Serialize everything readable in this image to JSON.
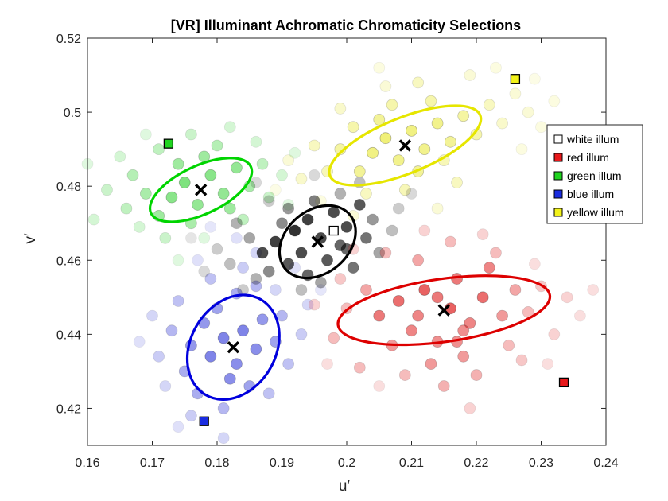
{
  "chart_data": {
    "type": "scatter",
    "title": "[VR] Illuminant Achromatic Chromaticity Selections",
    "xlabel": "u′",
    "ylabel": "v′",
    "xlim": [
      0.16,
      0.24
    ],
    "ylim": [
      0.41,
      0.52
    ],
    "xticks": [
      0.16,
      0.17,
      0.18,
      0.19,
      0.2,
      0.21,
      0.22,
      0.23,
      0.24
    ],
    "yticks": [
      0.42,
      0.44,
      0.46,
      0.48,
      0.5,
      0.52
    ],
    "xtick_labels": [
      "0.16",
      "0.17",
      "0.18",
      "0.19",
      "0.2",
      "0.21",
      "0.22",
      "0.23",
      "0.24"
    ],
    "ytick_labels": [
      "0.42",
      "0.44",
      "0.46",
      "0.48",
      "0.5",
      "0.52"
    ],
    "legend_position": "top-right",
    "series": [
      {
        "name": "white illum",
        "color": "#ffffff",
        "point_color": "#000000",
        "ellipse_color": "#000000",
        "illuminant": [
          0.198,
          0.468
        ],
        "mean": [
          0.1955,
          0.465
        ],
        "ellipse": {
          "rx": 0.0065,
          "ry": 0.0085,
          "angle_deg": 40
        },
        "points": [
          [
            0.187,
            0.462
          ],
          [
            0.189,
            0.465
          ],
          [
            0.191,
            0.459
          ],
          [
            0.192,
            0.468
          ],
          [
            0.193,
            0.462
          ],
          [
            0.194,
            0.456
          ],
          [
            0.194,
            0.471
          ],
          [
            0.196,
            0.466
          ],
          [
            0.197,
            0.46
          ],
          [
            0.198,
            0.473
          ],
          [
            0.199,
            0.464
          ],
          [
            0.2,
            0.469
          ],
          [
            0.201,
            0.458
          ],
          [
            0.202,
            0.475
          ],
          [
            0.19,
            0.47
          ],
          [
            0.188,
            0.457
          ],
          [
            0.195,
            0.476
          ],
          [
            0.2,
            0.463
          ],
          [
            0.203,
            0.466
          ],
          [
            0.185,
            0.466
          ],
          [
            0.183,
            0.47
          ],
          [
            0.191,
            0.474
          ],
          [
            0.196,
            0.454
          ],
          [
            0.204,
            0.471
          ],
          [
            0.186,
            0.455
          ],
          [
            0.182,
            0.459
          ],
          [
            0.205,
            0.462
          ],
          [
            0.199,
            0.478
          ],
          [
            0.193,
            0.452
          ],
          [
            0.207,
            0.468
          ],
          [
            0.18,
            0.463
          ],
          [
            0.184,
            0.452
          ],
          [
            0.188,
            0.476
          ],
          [
            0.202,
            0.481
          ],
          [
            0.178,
            0.457
          ],
          [
            0.208,
            0.474
          ],
          [
            0.195,
            0.483
          ],
          [
            0.186,
            0.481
          ],
          [
            0.176,
            0.466
          ],
          [
            0.21,
            0.478
          ]
        ],
        "alphas": [
          0.7,
          0.75,
          0.65,
          0.8,
          0.7,
          0.6,
          0.75,
          0.7,
          0.65,
          0.7,
          0.6,
          0.7,
          0.55,
          0.65,
          0.45,
          0.45,
          0.5,
          0.6,
          0.55,
          0.35,
          0.3,
          0.4,
          0.35,
          0.4,
          0.3,
          0.25,
          0.35,
          0.3,
          0.25,
          0.25,
          0.2,
          0.2,
          0.2,
          0.25,
          0.15,
          0.2,
          0.15,
          0.15,
          0.1,
          0.15
        ]
      },
      {
        "name": "red illum",
        "color": "#e8191b",
        "point_color": "#e02020",
        "ellipse_color": "#dd0000",
        "illuminant": [
          0.2335,
          0.427
        ],
        "mean": [
          0.215,
          0.4465
        ],
        "ellipse": {
          "rx": 0.0165,
          "ry": 0.0085,
          "angle_deg": 8
        },
        "points": [
          [
            0.205,
            0.445
          ],
          [
            0.208,
            0.449
          ],
          [
            0.21,
            0.441
          ],
          [
            0.212,
            0.452
          ],
          [
            0.214,
            0.438
          ],
          [
            0.216,
            0.447
          ],
          [
            0.217,
            0.455
          ],
          [
            0.219,
            0.443
          ],
          [
            0.221,
            0.45
          ],
          [
            0.222,
            0.458
          ],
          [
            0.207,
            0.437
          ],
          [
            0.203,
            0.452
          ],
          [
            0.213,
            0.432
          ],
          [
            0.218,
            0.434
          ],
          [
            0.224,
            0.445
          ],
          [
            0.226,
            0.452
          ],
          [
            0.211,
            0.46
          ],
          [
            0.2,
            0.447
          ],
          [
            0.198,
            0.439
          ],
          [
            0.202,
            0.431
          ],
          [
            0.209,
            0.429
          ],
          [
            0.215,
            0.426
          ],
          [
            0.22,
            0.429
          ],
          [
            0.225,
            0.437
          ],
          [
            0.228,
            0.446
          ],
          [
            0.23,
            0.453
          ],
          [
            0.223,
            0.462
          ],
          [
            0.216,
            0.465
          ],
          [
            0.206,
            0.462
          ],
          [
            0.199,
            0.455
          ],
          [
            0.195,
            0.448
          ],
          [
            0.232,
            0.44
          ],
          [
            0.234,
            0.45
          ],
          [
            0.227,
            0.433
          ],
          [
            0.212,
            0.468
          ],
          [
            0.221,
            0.467
          ],
          [
            0.236,
            0.445
          ],
          [
            0.219,
            0.42
          ],
          [
            0.197,
            0.432
          ],
          [
            0.205,
            0.426
          ],
          [
            0.238,
            0.452
          ],
          [
            0.231,
            0.432
          ],
          [
            0.229,
            0.459
          ],
          [
            0.201,
            0.463
          ],
          [
            0.217,
            0.438
          ],
          [
            0.211,
            0.445
          ],
          [
            0.214,
            0.45
          ],
          [
            0.218,
            0.441
          ]
        ],
        "alphas": [
          0.6,
          0.65,
          0.55,
          0.7,
          0.5,
          0.7,
          0.6,
          0.55,
          0.65,
          0.55,
          0.45,
          0.4,
          0.45,
          0.45,
          0.45,
          0.4,
          0.4,
          0.3,
          0.3,
          0.3,
          0.3,
          0.35,
          0.35,
          0.3,
          0.3,
          0.25,
          0.3,
          0.3,
          0.3,
          0.25,
          0.2,
          0.2,
          0.2,
          0.25,
          0.2,
          0.2,
          0.15,
          0.2,
          0.15,
          0.15,
          0.15,
          0.15,
          0.15,
          0.2,
          0.5,
          0.55,
          0.6,
          0.5
        ]
      },
      {
        "name": "green illum",
        "color": "#1fd41f",
        "point_color": "#2ad02a",
        "ellipse_color": "#00d400",
        "illuminant": [
          0.1725,
          0.4915
        ],
        "mean": [
          0.1775,
          0.479
        ],
        "ellipse": {
          "rx": 0.0085,
          "ry": 0.0065,
          "angle_deg": 25
        },
        "points": [
          [
            0.173,
            0.477
          ],
          [
            0.175,
            0.481
          ],
          [
            0.177,
            0.475
          ],
          [
            0.179,
            0.483
          ],
          [
            0.181,
            0.478
          ],
          [
            0.183,
            0.485
          ],
          [
            0.171,
            0.472
          ],
          [
            0.174,
            0.486
          ],
          [
            0.178,
            0.488
          ],
          [
            0.182,
            0.474
          ],
          [
            0.169,
            0.478
          ],
          [
            0.185,
            0.48
          ],
          [
            0.176,
            0.47
          ],
          [
            0.18,
            0.491
          ],
          [
            0.167,
            0.483
          ],
          [
            0.171,
            0.49
          ],
          [
            0.187,
            0.486
          ],
          [
            0.184,
            0.471
          ],
          [
            0.166,
            0.474
          ],
          [
            0.172,
            0.466
          ],
          [
            0.188,
            0.477
          ],
          [
            0.176,
            0.494
          ],
          [
            0.163,
            0.479
          ],
          [
            0.168,
            0.469
          ],
          [
            0.19,
            0.483
          ],
          [
            0.182,
            0.496
          ],
          [
            0.161,
            0.471
          ],
          [
            0.165,
            0.488
          ],
          [
            0.186,
            0.492
          ],
          [
            0.169,
            0.494
          ],
          [
            0.192,
            0.489
          ],
          [
            0.16,
            0.486
          ],
          [
            0.178,
            0.466
          ],
          [
            0.174,
            0.46
          ],
          [
            0.191,
            0.475
          ]
        ],
        "alphas": [
          0.55,
          0.6,
          0.5,
          0.55,
          0.5,
          0.5,
          0.45,
          0.45,
          0.45,
          0.45,
          0.4,
          0.4,
          0.4,
          0.35,
          0.35,
          0.3,
          0.3,
          0.3,
          0.3,
          0.25,
          0.25,
          0.25,
          0.25,
          0.2,
          0.2,
          0.2,
          0.2,
          0.2,
          0.2,
          0.15,
          0.15,
          0.15,
          0.15,
          0.15,
          0.15
        ]
      },
      {
        "name": "blue illum",
        "color": "#1a2ce0",
        "point_color": "#2a32d8",
        "ellipse_color": "#0000dd",
        "illuminant": [
          0.178,
          0.4165
        ],
        "mean": [
          0.1825,
          0.4365
        ],
        "ellipse": {
          "rx": 0.0085,
          "ry": 0.0115,
          "angle_deg": 60
        },
        "points": [
          [
            0.179,
            0.434
          ],
          [
            0.181,
            0.439
          ],
          [
            0.183,
            0.432
          ],
          [
            0.184,
            0.441
          ],
          [
            0.186,
            0.436
          ],
          [
            0.178,
            0.443
          ],
          [
            0.182,
            0.428
          ],
          [
            0.187,
            0.444
          ],
          [
            0.176,
            0.437
          ],
          [
            0.18,
            0.447
          ],
          [
            0.185,
            0.426
          ],
          [
            0.189,
            0.438
          ],
          [
            0.175,
            0.43
          ],
          [
            0.183,
            0.451
          ],
          [
            0.177,
            0.424
          ],
          [
            0.19,
            0.445
          ],
          [
            0.173,
            0.441
          ],
          [
            0.186,
            0.453
          ],
          [
            0.181,
            0.42
          ],
          [
            0.191,
            0.432
          ],
          [
            0.174,
            0.449
          ],
          [
            0.179,
            0.455
          ],
          [
            0.188,
            0.424
          ],
          [
            0.171,
            0.434
          ],
          [
            0.184,
            0.458
          ],
          [
            0.176,
            0.418
          ],
          [
            0.193,
            0.44
          ],
          [
            0.172,
            0.426
          ],
          [
            0.189,
            0.452
          ],
          [
            0.181,
            0.412
          ],
          [
            0.186,
            0.462
          ],
          [
            0.17,
            0.445
          ],
          [
            0.194,
            0.448
          ],
          [
            0.177,
            0.46
          ],
          [
            0.174,
            0.415
          ],
          [
            0.192,
            0.458
          ],
          [
            0.168,
            0.438
          ],
          [
            0.183,
            0.466
          ],
          [
            0.196,
            0.452
          ],
          [
            0.179,
            0.469
          ]
        ],
        "alphas": [
          0.6,
          0.6,
          0.55,
          0.6,
          0.55,
          0.5,
          0.55,
          0.5,
          0.5,
          0.45,
          0.45,
          0.45,
          0.4,
          0.4,
          0.4,
          0.35,
          0.35,
          0.35,
          0.35,
          0.3,
          0.3,
          0.3,
          0.3,
          0.25,
          0.25,
          0.25,
          0.25,
          0.2,
          0.2,
          0.2,
          0.2,
          0.2,
          0.2,
          0.15,
          0.15,
          0.15,
          0.15,
          0.15,
          0.12,
          0.12
        ]
      },
      {
        "name": "yellow illum",
        "color": "#f2f21a",
        "point_color": "#e8e830",
        "ellipse_color": "#e6e600",
        "illuminant": [
          0.226,
          0.509
        ],
        "mean": [
          0.209,
          0.491
        ],
        "ellipse": {
          "rx": 0.0125,
          "ry": 0.0075,
          "angle_deg": 22
        },
        "points": [
          [
            0.204,
            0.489
          ],
          [
            0.206,
            0.493
          ],
          [
            0.208,
            0.487
          ],
          [
            0.21,
            0.495
          ],
          [
            0.212,
            0.49
          ],
          [
            0.214,
            0.497
          ],
          [
            0.202,
            0.484
          ],
          [
            0.205,
            0.498
          ],
          [
            0.211,
            0.484
          ],
          [
            0.216,
            0.492
          ],
          [
            0.199,
            0.49
          ],
          [
            0.218,
            0.499
          ],
          [
            0.207,
            0.502
          ],
          [
            0.213,
            0.503
          ],
          [
            0.201,
            0.496
          ],
          [
            0.22,
            0.494
          ],
          [
            0.197,
            0.484
          ],
          [
            0.209,
            0.479
          ],
          [
            0.215,
            0.487
          ],
          [
            0.203,
            0.478
          ],
          [
            0.222,
            0.502
          ],
          [
            0.195,
            0.491
          ],
          [
            0.211,
            0.508
          ],
          [
            0.217,
            0.481
          ],
          [
            0.199,
            0.501
          ],
          [
            0.224,
            0.497
          ],
          [
            0.193,
            0.482
          ],
          [
            0.206,
            0.507
          ],
          [
            0.226,
            0.505
          ],
          [
            0.219,
            0.51
          ],
          [
            0.191,
            0.487
          ],
          [
            0.228,
            0.5
          ],
          [
            0.201,
            0.472
          ],
          [
            0.214,
            0.474
          ],
          [
            0.23,
            0.496
          ],
          [
            0.223,
            0.512
          ],
          [
            0.196,
            0.476
          ],
          [
            0.232,
            0.503
          ],
          [
            0.205,
            0.512
          ],
          [
            0.227,
            0.49
          ],
          [
            0.229,
            0.509
          ],
          [
            0.189,
            0.479
          ]
        ],
        "alphas": [
          0.6,
          0.65,
          0.55,
          0.6,
          0.55,
          0.55,
          0.5,
          0.5,
          0.5,
          0.5,
          0.45,
          0.45,
          0.4,
          0.4,
          0.4,
          0.4,
          0.35,
          0.35,
          0.35,
          0.3,
          0.3,
          0.3,
          0.3,
          0.3,
          0.25,
          0.25,
          0.25,
          0.2,
          0.2,
          0.2,
          0.2,
          0.2,
          0.2,
          0.2,
          0.15,
          0.15,
          0.15,
          0.15,
          0.15,
          0.15,
          0.12,
          0.12
        ]
      }
    ]
  }
}
